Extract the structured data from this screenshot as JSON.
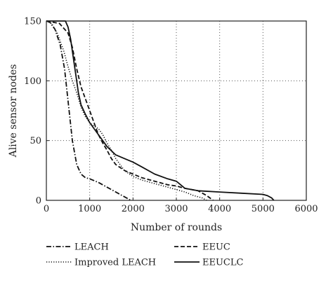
{
  "chart_data": {
    "type": "line",
    "xlabel": "Number of rounds",
    "ylabel": "Alive sensor nodes",
    "xlim": [
      0,
      6000
    ],
    "ylim": [
      0,
      150
    ],
    "xticks": [
      0,
      1000,
      2000,
      3000,
      4000,
      5000,
      6000
    ],
    "yticks": [
      0,
      50,
      100,
      150
    ],
    "grid": "dotted",
    "legend_position": "bottom",
    "series": [
      {
        "name": "LEACH",
        "style": "dashdot",
        "x": [
          0,
          80,
          200,
          320,
          420,
          480,
          540,
          600,
          700,
          800,
          900,
          1000,
          1200,
          1400,
          1550,
          1700,
          1850,
          1950
        ],
        "y": [
          150,
          149,
          143,
          130,
          110,
          90,
          70,
          50,
          30,
          22,
          19,
          18,
          15,
          11,
          8,
          5,
          2,
          0
        ]
      },
      {
        "name": "Improved LEACH",
        "style": "dotted",
        "x": [
          0,
          120,
          250,
          400,
          500,
          600,
          700,
          800,
          900,
          1000,
          1100,
          1200,
          1300,
          1400,
          1500,
          1600,
          1700,
          1800,
          2000,
          2200,
          2500,
          2800,
          3000,
          3200,
          3400,
          3600,
          3700
        ],
        "y": [
          150,
          148,
          140,
          125,
          112,
          100,
          90,
          78,
          70,
          65,
          62,
          60,
          55,
          48,
          42,
          35,
          30,
          25,
          20,
          17,
          14,
          11,
          9,
          7,
          4,
          2,
          0
        ]
      },
      {
        "name": "EEUC",
        "style": "dashed",
        "x": [
          0,
          300,
          500,
          600,
          700,
          800,
          900,
          1000,
          1100,
          1200,
          1300,
          1400,
          1500,
          1600,
          1800,
          2000,
          2200,
          2500,
          2800,
          3000,
          3200,
          3500,
          3700,
          3850
        ],
        "y": [
          150,
          148,
          140,
          128,
          110,
          95,
          85,
          75,
          65,
          55,
          48,
          42,
          35,
          30,
          25,
          22,
          19,
          16,
          13,
          12,
          10,
          8,
          4,
          0
        ]
      },
      {
        "name": "EEUCLC",
        "style": "solid",
        "x": [
          0,
          440,
          500,
          560,
          620,
          680,
          740,
          800,
          900,
          1000,
          1200,
          1400,
          1600,
          1800,
          2000,
          2200,
          2500,
          2800,
          3000,
          3200,
          3500,
          4000,
          4500,
          5000,
          5100,
          5200,
          5250
        ],
        "y": [
          150,
          150,
          145,
          135,
          120,
          105,
          90,
          80,
          72,
          65,
          55,
          45,
          38,
          35,
          32,
          28,
          22,
          18,
          16,
          10,
          8,
          7,
          6,
          5,
          4,
          2,
          0
        ]
      }
    ]
  }
}
